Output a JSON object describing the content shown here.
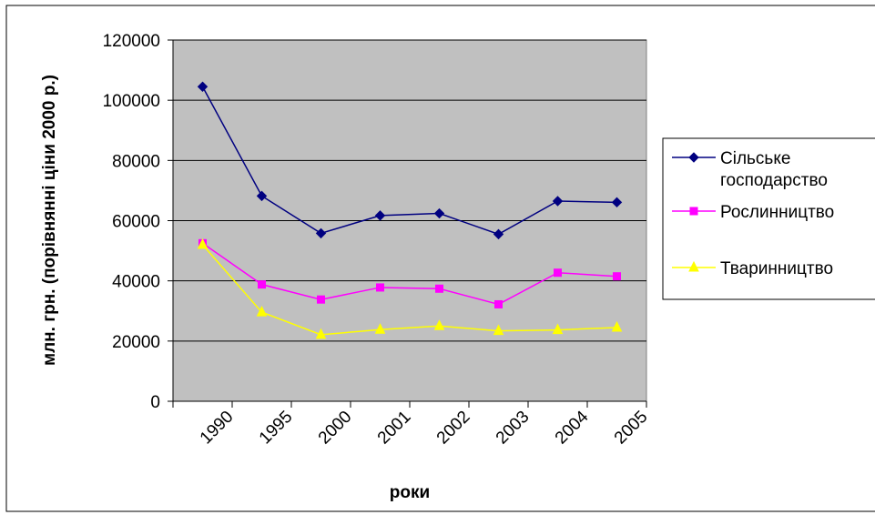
{
  "chart_data": {
    "type": "line",
    "categories": [
      "1990",
      "1995",
      "2000",
      "2001",
      "2002",
      "2003",
      "2004",
      "2005"
    ],
    "series": [
      {
        "name": "Сільське господарство",
        "name_lines": [
          "Сільське",
          "господарство"
        ],
        "color": "#000080",
        "marker": "diamond",
        "values": [
          104500,
          68200,
          55800,
          61700,
          62400,
          55500,
          66500,
          66100
        ]
      },
      {
        "name": "Рослинництво",
        "name_lines": [
          "Рослинництво"
        ],
        "color": "#FF00FF",
        "marker": "square",
        "values": [
          52500,
          38800,
          33800,
          37800,
          37400,
          32200,
          42700,
          41500
        ]
      },
      {
        "name": "Тваринництво",
        "name_lines": [
          "Тваринництво"
        ],
        "color": "#FFFF00",
        "marker": "triangle",
        "values": [
          52000,
          29600,
          22100,
          23800,
          25000,
          23400,
          23700,
          24500
        ]
      }
    ],
    "xlabel": "роки",
    "ylabel": "млн. грн. (порівнянні ціни 2000 р.)",
    "ylim": [
      0,
      120000
    ],
    "yticks": [
      0,
      20000,
      40000,
      60000,
      80000,
      100000,
      120000
    ],
    "grid": true,
    "plot_background": "#C0C0C0",
    "legend_position": "right"
  }
}
